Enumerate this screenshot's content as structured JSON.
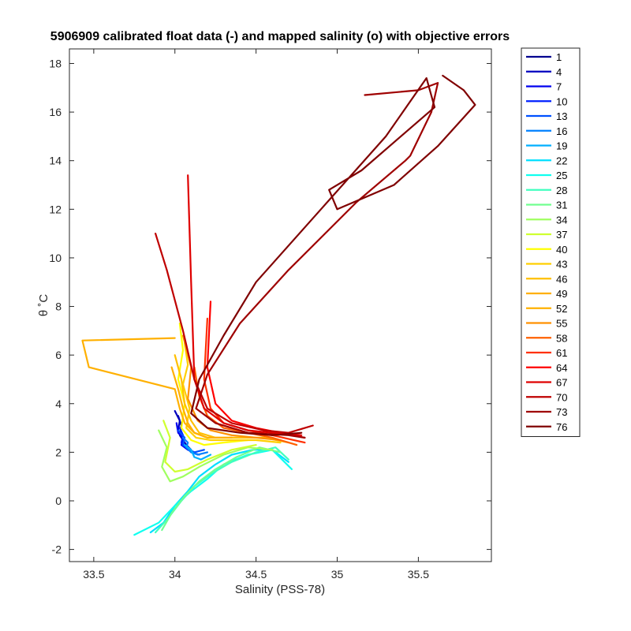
{
  "chart_data": {
    "type": "line",
    "title": "5906909 calibrated float data (-) and mapped salinity (o) with objective errors",
    "xlabel": "Salinity (PSS-78)",
    "ylabel": "θ ˚C",
    "xlim": [
      33.35,
      35.95
    ],
    "ylim": [
      -2.5,
      18.6
    ],
    "xticks": [
      33.5,
      34,
      34.5,
      35,
      35.5
    ],
    "xtick_labels": [
      "33.5",
      "34",
      "34.5",
      "35",
      "35.5"
    ],
    "yticks": [
      -2,
      0,
      2,
      4,
      6,
      8,
      10,
      12,
      14,
      16,
      18
    ],
    "ytick_labels": [
      "-2",
      "0",
      "2",
      "4",
      "6",
      "8",
      "10",
      "12",
      "14",
      "16",
      "18"
    ],
    "grid": false,
    "legend_position": "outside-right",
    "legend": [
      "1",
      "4",
      "7",
      "10",
      "13",
      "16",
      "19",
      "22",
      "25",
      "28",
      "31",
      "34",
      "37",
      "40",
      "43",
      "46",
      "49",
      "52",
      "55",
      "58",
      "61",
      "64",
      "67",
      "70",
      "73",
      "76"
    ],
    "series": [
      {
        "name": "1",
        "color": "#00008f",
        "x": [
          34.02,
          34.04,
          34.03,
          34.06,
          34.08,
          34.1
        ],
        "y": [
          3.5,
          3.1,
          2.7,
          2.4,
          2.2,
          2.0
        ]
      },
      {
        "name": "4",
        "color": "#0000bf",
        "x": [
          34.0,
          34.03,
          34.02,
          34.05,
          34.07,
          34.1
        ],
        "y": [
          3.7,
          3.3,
          2.9,
          2.5,
          2.3,
          2.1
        ]
      },
      {
        "name": "7",
        "color": "#0000ef",
        "x": [
          34.01,
          34.02,
          34.05,
          34.04,
          34.08,
          34.12
        ],
        "y": [
          3.2,
          2.8,
          2.6,
          2.3,
          2.1,
          2.0
        ]
      },
      {
        "name": "10",
        "color": "#0020ff",
        "x": [
          34.03,
          34.05,
          34.04,
          34.07,
          34.1,
          34.15
        ],
        "y": [
          3.0,
          2.7,
          2.4,
          2.2,
          2.0,
          1.9
        ]
      },
      {
        "name": "13",
        "color": "#0050ff",
        "x": [
          34.02,
          34.06,
          34.05,
          34.09,
          34.12,
          34.18
        ],
        "y": [
          2.9,
          2.6,
          2.3,
          2.1,
          2.0,
          2.1
        ]
      },
      {
        "name": "16",
        "color": "#0080ff",
        "x": [
          34.05,
          34.08,
          34.07,
          34.1,
          34.14,
          34.2
        ],
        "y": [
          2.6,
          2.4,
          2.2,
          2.0,
          1.9,
          2.0
        ]
      },
      {
        "name": "19",
        "color": "#00afff",
        "x": [
          34.06,
          34.1,
          34.12,
          34.16,
          34.22
        ],
        "y": [
          2.3,
          2.1,
          1.8,
          1.7,
          1.9
        ]
      },
      {
        "name": "22",
        "color": "#00dfff",
        "x": [
          33.85,
          33.93,
          34.0,
          34.08,
          34.15,
          34.25,
          34.35,
          34.48,
          34.6,
          34.7
        ],
        "y": [
          -1.3,
          -0.9,
          -0.2,
          0.4,
          1.0,
          1.5,
          1.9,
          2.1,
          2.1,
          1.6
        ]
      },
      {
        "name": "25",
        "color": "#10ffef",
        "x": [
          33.75,
          33.9,
          34.0,
          34.1,
          34.2,
          34.3,
          34.45,
          34.6,
          34.72
        ],
        "y": [
          -1.4,
          -0.9,
          -0.2,
          0.4,
          0.9,
          1.5,
          1.9,
          2.1,
          1.3
        ]
      },
      {
        "name": "28",
        "color": "#40ffbf",
        "x": [
          33.88,
          33.96,
          34.04,
          34.12,
          34.22,
          34.35,
          34.5,
          34.62,
          34.7
        ],
        "y": [
          -1.3,
          -0.7,
          0.0,
          0.6,
          1.1,
          1.6,
          2.0,
          2.2,
          1.7
        ]
      },
      {
        "name": "31",
        "color": "#70ff8f",
        "x": [
          33.92,
          33.98,
          34.06,
          34.15,
          34.25,
          34.38,
          34.52,
          34.65
        ],
        "y": [
          -1.2,
          -0.5,
          0.2,
          0.8,
          1.3,
          1.8,
          2.2,
          2.0
        ]
      },
      {
        "name": "34",
        "color": "#9fff60",
        "x": [
          33.9,
          33.95,
          33.92,
          33.97,
          34.05,
          34.15,
          34.3,
          34.45,
          34.6
        ],
        "y": [
          2.9,
          2.2,
          1.4,
          0.8,
          1.0,
          1.4,
          1.9,
          2.2,
          2.1
        ]
      },
      {
        "name": "37",
        "color": "#cfff30",
        "x": [
          33.93,
          33.97,
          33.94,
          34.0,
          34.08,
          34.2,
          34.35,
          34.5
        ],
        "y": [
          3.3,
          2.6,
          1.6,
          1.2,
          1.3,
          1.7,
          2.1,
          2.3
        ]
      },
      {
        "name": "40",
        "color": "#ffff00",
        "x": [
          34.03,
          34.05,
          34.02,
          34.06,
          34.04,
          34.1,
          34.18,
          34.3,
          34.45
        ],
        "y": [
          7.3,
          6.2,
          5.0,
          4.0,
          3.0,
          2.5,
          2.3,
          2.4,
          2.5
        ]
      },
      {
        "name": "43",
        "color": "#ffcf00",
        "x": [
          34.06,
          34.08,
          34.05,
          34.09,
          34.07,
          34.13,
          34.22,
          34.35,
          34.5,
          34.65
        ],
        "y": [
          6.5,
          5.6,
          4.8,
          3.8,
          3.0,
          2.6,
          2.5,
          2.5,
          2.5,
          2.4
        ]
      },
      {
        "name": "46",
        "color": "#ffbf00",
        "x": [
          34.0,
          34.04,
          34.06,
          34.1,
          34.15,
          34.25,
          34.4,
          34.55,
          34.7
        ],
        "y": [
          6.0,
          5.0,
          4.0,
          3.3,
          2.8,
          2.6,
          2.6,
          2.6,
          2.4
        ]
      },
      {
        "name": "49",
        "color": "#ffaf00",
        "x": [
          33.98,
          34.02,
          34.05,
          34.08,
          34.12,
          34.2,
          34.35
        ],
        "y": [
          5.5,
          4.6,
          3.8,
          3.2,
          2.8,
          2.6,
          2.6
        ]
      },
      {
        "name": "52",
        "color": "#ffb000",
        "x": [
          34.0,
          33.43,
          33.47,
          34.0,
          34.03,
          34.06,
          34.12,
          34.2
        ],
        "y": [
          6.7,
          6.6,
          5.5,
          4.6,
          3.8,
          3.2,
          2.8,
          2.6
        ]
      },
      {
        "name": "55",
        "color": "#ff9000",
        "x": [
          34.05,
          34.1,
          34.08,
          34.14,
          34.22,
          34.35,
          34.5,
          34.65
        ],
        "y": [
          6.8,
          5.5,
          4.2,
          3.3,
          2.9,
          2.7,
          2.6,
          2.5
        ]
      },
      {
        "name": "58",
        "color": "#ff6000",
        "x": [
          34.12,
          34.15,
          34.2,
          34.3,
          34.45,
          34.6,
          34.75
        ],
        "y": [
          5.5,
          4.3,
          3.5,
          3.0,
          2.8,
          2.6,
          2.3
        ]
      },
      {
        "name": "61",
        "color": "#ff3000",
        "x": [
          34.2,
          34.18,
          34.22,
          34.3,
          34.45,
          34.6,
          34.8
        ],
        "y": [
          7.5,
          5.0,
          3.8,
          3.2,
          2.9,
          2.7,
          2.4
        ]
      },
      {
        "name": "64",
        "color": "#ff0000",
        "x": [
          34.22,
          34.2,
          34.25,
          34.35,
          34.5,
          34.65,
          34.8
        ],
        "y": [
          8.2,
          5.5,
          4.0,
          3.3,
          3.0,
          2.8,
          2.6
        ]
      },
      {
        "name": "67",
        "color": "#df0000",
        "x": [
          34.08,
          34.1,
          34.12,
          34.18,
          34.3,
          34.45,
          34.6,
          34.78
        ],
        "y": [
          13.4,
          9.0,
          5.0,
          3.8,
          3.2,
          2.9,
          2.8,
          2.7
        ]
      },
      {
        "name": "70",
        "color": "#bf0000",
        "x": [
          33.88,
          33.95,
          34.05,
          34.12,
          34.2,
          34.35,
          34.55,
          34.7,
          34.85
        ],
        "y": [
          11.0,
          9.5,
          7.0,
          5.0,
          3.8,
          3.2,
          2.9,
          2.8,
          3.1
        ]
      },
      {
        "name": "73",
        "color": "#9f0000",
        "x": [
          35.17,
          35.5,
          35.62,
          35.58,
          35.45,
          35.42,
          35.12,
          34.7,
          34.4,
          34.2,
          34.13,
          34.25,
          34.45,
          34.7,
          34.8
        ],
        "y": [
          16.7,
          16.9,
          17.2,
          16.0,
          14.2,
          14.0,
          12.3,
          9.5,
          7.3,
          5.2,
          3.8,
          3.2,
          2.8,
          2.7,
          2.6
        ]
      },
      {
        "name": "76",
        "color": "#800000",
        "x": [
          35.65,
          35.78,
          35.85,
          35.62,
          35.35,
          35.0,
          34.95,
          35.15,
          35.6,
          35.55,
          35.3,
          34.9,
          34.5,
          34.3,
          34.15,
          34.1,
          34.2,
          34.4,
          34.6,
          34.78
        ],
        "y": [
          17.5,
          16.9,
          16.3,
          14.6,
          13.0,
          12.0,
          12.8,
          13.6,
          16.2,
          17.4,
          15.0,
          12.0,
          9.0,
          6.8,
          5.0,
          3.6,
          3.0,
          2.8,
          2.7,
          2.8
        ]
      }
    ]
  }
}
